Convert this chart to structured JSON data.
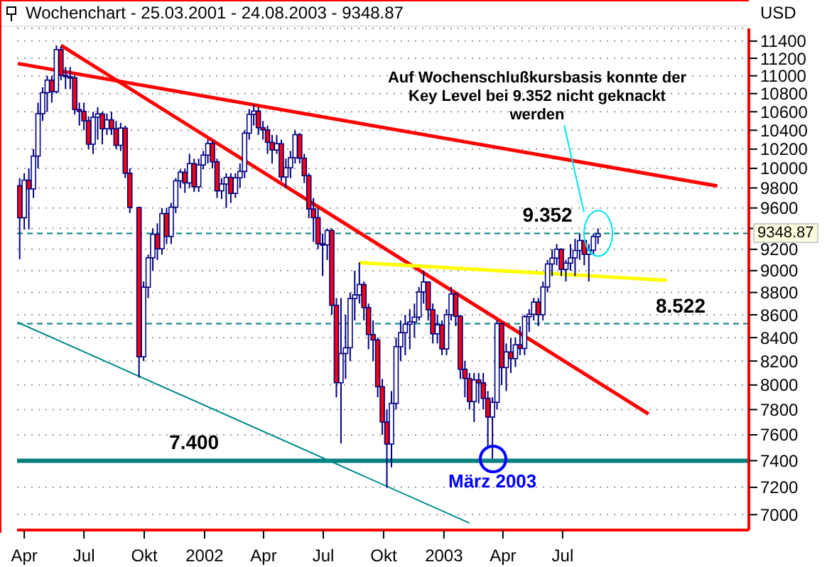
{
  "chart_data": {
    "type": "candlestick",
    "title": "Wochenchart - 25.03.2001 - 24.08.2003 - 9348.87",
    "log": true,
    "grid": "y",
    "xlim": [
      "2001-03-21",
      "2004-04-10"
    ],
    "xticks": [
      {
        "value": "2001-04-01",
        "label": "Apr"
      },
      {
        "value": "2001-07-01",
        "label": "Jul"
      },
      {
        "value": "2001-10-01",
        "label": "Okt"
      },
      {
        "value": "2002-01-01",
        "label": "2002"
      },
      {
        "value": "2002-04-01",
        "label": "Apr"
      },
      {
        "value": "2002-07-01",
        "label": "Jul"
      },
      {
        "value": "2002-10-01",
        "label": "Okt"
      },
      {
        "value": "2003-01-01",
        "label": "2003"
      },
      {
        "value": "2003-04-01",
        "label": "Apr"
      },
      {
        "value": "2003-07-01",
        "label": "Jul"
      }
    ],
    "ylim": [
      6890,
      11550
    ],
    "yticks": [
      7000,
      7200,
      7400,
      7600,
      7800,
      8000,
      8200,
      8400,
      8600,
      8800,
      9000,
      9200,
      {
        "value": 9400,
        "label": null
      },
      9600,
      9800,
      10000,
      10200,
      10400,
      10600,
      10800,
      11000,
      11200,
      11400
    ],
    "series": [
      {
        "type": "candlestick",
        "color": "#000080",
        "x": [
          "2001-03-25",
          "2001-04-01",
          "2001-04-08",
          "2001-04-15",
          "2001-04-22",
          "2001-04-29",
          "2001-05-06",
          "2001-05-13",
          "2001-05-20",
          "2001-05-27",
          "2001-06-03",
          "2001-06-10",
          "2001-06-17",
          "2001-06-24",
          "2001-07-01",
          "2001-07-08",
          "2001-07-15",
          "2001-07-22",
          "2001-07-29",
          "2001-08-05",
          "2001-08-12",
          "2001-08-19",
          "2001-08-26",
          "2001-09-02",
          "2001-09-09",
          "2001-09-23",
          "2001-09-30",
          "2001-10-07",
          "2001-10-14",
          "2001-10-21",
          "2001-10-28",
          "2001-11-04",
          "2001-11-11",
          "2001-11-18",
          "2001-11-25",
          "2001-12-02",
          "2001-12-09",
          "2001-12-16",
          "2001-12-23",
          "2001-12-30",
          "2002-01-06",
          "2002-01-13",
          "2002-01-20",
          "2002-01-27",
          "2002-02-03",
          "2002-02-10",
          "2002-02-17",
          "2002-02-24",
          "2002-03-03",
          "2002-03-10",
          "2002-03-17",
          "2002-03-24",
          "2002-03-31",
          "2002-04-07",
          "2002-04-14",
          "2002-04-21",
          "2002-04-28",
          "2002-05-05",
          "2002-05-12",
          "2002-05-19",
          "2002-05-26",
          "2002-06-02",
          "2002-06-09",
          "2002-06-16",
          "2002-06-23",
          "2002-06-30",
          "2002-07-07",
          "2002-07-14",
          "2002-07-21",
          "2002-07-28",
          "2002-08-04",
          "2002-08-11",
          "2002-08-18",
          "2002-08-25",
          "2002-09-01",
          "2002-09-08",
          "2002-09-15",
          "2002-09-22",
          "2002-09-29",
          "2002-10-06",
          "2002-10-13",
          "2002-10-20",
          "2002-10-27",
          "2002-11-03",
          "2002-11-10",
          "2002-11-17",
          "2002-11-24",
          "2002-12-01",
          "2002-12-08",
          "2002-12-15",
          "2002-12-22",
          "2002-12-29",
          "2003-01-05",
          "2003-01-12",
          "2003-01-19",
          "2003-01-26",
          "2003-02-02",
          "2003-02-09",
          "2003-02-16",
          "2003-02-23",
          "2003-03-02",
          "2003-03-09",
          "2003-03-16",
          "2003-03-23",
          "2003-03-30",
          "2003-04-06",
          "2003-04-13",
          "2003-04-20",
          "2003-04-27",
          "2003-05-04",
          "2003-05-11",
          "2003-05-18",
          "2003-05-25",
          "2003-06-01",
          "2003-06-08",
          "2003-06-15",
          "2003-06-22",
          "2003-06-29",
          "2003-07-06",
          "2003-07-13",
          "2003-07-20",
          "2003-07-27",
          "2003-08-03",
          "2003-08-10",
          "2003-08-17",
          "2003-08-24"
        ],
        "ohlc": [
          [
            9823,
            9900,
            9106,
            9504
          ],
          [
            9504,
            9950,
            9390,
            9879
          ],
          [
            9879,
            10000,
            9390,
            9791
          ],
          [
            9791,
            10200,
            9700,
            10127
          ],
          [
            10127,
            10700,
            10000,
            10579
          ],
          [
            10579,
            10870,
            10500,
            10810
          ],
          [
            10810,
            11000,
            10600,
            10951
          ],
          [
            10951,
            11000,
            10700,
            10821
          ],
          [
            10821,
            11350,
            10800,
            11301
          ],
          [
            11301,
            11340,
            10950,
            11005
          ],
          [
            11005,
            11100,
            10850,
            10990
          ],
          [
            10990,
            11100,
            10850,
            10977
          ],
          [
            10977,
            11000,
            10570,
            10624
          ],
          [
            10624,
            10700,
            10450,
            10604
          ],
          [
            10604,
            10700,
            10400,
            10502
          ],
          [
            10502,
            10550,
            10200,
            10252
          ],
          [
            10252,
            10600,
            10150,
            10540
          ],
          [
            10540,
            10650,
            10300,
            10577
          ],
          [
            10577,
            10600,
            10250,
            10416
          ],
          [
            10416,
            10580,
            10350,
            10512
          ],
          [
            10512,
            10600,
            10350,
            10416
          ],
          [
            10416,
            10500,
            10200,
            10240
          ],
          [
            10240,
            10480,
            10180,
            10423
          ],
          [
            10423,
            10450,
            9900,
            9950
          ],
          [
            9950,
            10000,
            9550,
            9605
          ],
          [
            9605,
            9610,
            8062,
            8236
          ],
          [
            8236,
            8900,
            8200,
            8848
          ],
          [
            8848,
            9150,
            8750,
            9120
          ],
          [
            9120,
            9400,
            9000,
            9344
          ],
          [
            9344,
            9450,
            9100,
            9205
          ],
          [
            9205,
            9600,
            9150,
            9545
          ],
          [
            9545,
            9600,
            9250,
            9323
          ],
          [
            9323,
            9650,
            9250,
            9608
          ],
          [
            9608,
            9900,
            9550,
            9872
          ],
          [
            9872,
            9990,
            9800,
            9960
          ],
          [
            9960,
            10000,
            9750,
            9851
          ],
          [
            9851,
            10150,
            9800,
            10049
          ],
          [
            10049,
            10100,
            9760,
            9812
          ],
          [
            9812,
            10100,
            9760,
            10035
          ],
          [
            10035,
            10180,
            9990,
            10137
          ],
          [
            10137,
            10300,
            10050,
            10259
          ],
          [
            10259,
            10290,
            10000,
            10068
          ],
          [
            10068,
            10100,
            9700,
            9771
          ],
          [
            9771,
            9900,
            9690,
            9840
          ],
          [
            9840,
            9950,
            9600,
            9907
          ],
          [
            9907,
            9950,
            9650,
            9745
          ],
          [
            9745,
            9950,
            9700,
            9903
          ],
          [
            9903,
            10050,
            9800,
            9968
          ],
          [
            9968,
            10400,
            9900,
            10369
          ],
          [
            10369,
            10630,
            10300,
            10572
          ],
          [
            10572,
            10680,
            10450,
            10607
          ],
          [
            10607,
            10650,
            10350,
            10427
          ],
          [
            10427,
            10500,
            10300,
            10404
          ],
          [
            10404,
            10450,
            10150,
            10271
          ],
          [
            10271,
            10350,
            10050,
            10191
          ],
          [
            10191,
            10350,
            10150,
            10257
          ],
          [
            10257,
            10300,
            9870,
            9911
          ],
          [
            9911,
            10100,
            9800,
            10006
          ],
          [
            10006,
            10180,
            9900,
            10110
          ],
          [
            10110,
            10400,
            10050,
            10353
          ],
          [
            10353,
            10370,
            10050,
            10105
          ],
          [
            10105,
            10150,
            9850,
            9925
          ],
          [
            9925,
            9950,
            9500,
            9590
          ],
          [
            9590,
            9700,
            9270,
            9504
          ],
          [
            9504,
            9600,
            9200,
            9253
          ],
          [
            9253,
            9350,
            8950,
            9243
          ],
          [
            9243,
            9400,
            9100,
            9380
          ],
          [
            9380,
            9400,
            8600,
            8685
          ],
          [
            8685,
            8750,
            7900,
            8019
          ],
          [
            8019,
            8750,
            7532,
            8264
          ],
          [
            8264,
            8600,
            8050,
            8313
          ],
          [
            8313,
            8800,
            8200,
            8745
          ],
          [
            8745,
            9000,
            8550,
            8778
          ],
          [
            8778,
            9077,
            8700,
            8873
          ],
          [
            8873,
            8900,
            8550,
            8664
          ],
          [
            8664,
            8700,
            8300,
            8427
          ],
          [
            8427,
            8550,
            8200,
            8380
          ],
          [
            8380,
            8400,
            7900,
            7986
          ],
          [
            7986,
            8050,
            7600,
            7701
          ],
          [
            7701,
            7800,
            7197,
            7528
          ],
          [
            7528,
            7950,
            7350,
            7850
          ],
          [
            7850,
            8400,
            7800,
            8322
          ],
          [
            8322,
            8550,
            8200,
            8443
          ],
          [
            8443,
            8600,
            8250,
            8517
          ],
          [
            8517,
            8650,
            8300,
            8537
          ],
          [
            8537,
            8700,
            8400,
            8579
          ],
          [
            8579,
            8850,
            8550,
            8805
          ],
          [
            8805,
            9000,
            8700,
            8896
          ],
          [
            8896,
            8900,
            8550,
            8645
          ],
          [
            8645,
            8700,
            8350,
            8433
          ],
          [
            8433,
            8600,
            8350,
            8511
          ],
          [
            8511,
            8550,
            8250,
            8303
          ],
          [
            8303,
            8650,
            8250,
            8601
          ],
          [
            8601,
            8850,
            8550,
            8785
          ],
          [
            8785,
            8800,
            8500,
            8587
          ],
          [
            8587,
            8600,
            8050,
            8131
          ],
          [
            8131,
            8200,
            7900,
            8054
          ],
          [
            8054,
            8100,
            7800,
            7865
          ],
          [
            7865,
            8100,
            7700,
            8042
          ],
          [
            8042,
            8100,
            7850,
            8018
          ],
          [
            8018,
            8100,
            7800,
            7891
          ],
          [
            7891,
            7950,
            7500,
            7740
          ],
          [
            7740,
            7900,
            7416,
            7859
          ],
          [
            7859,
            8550,
            7800,
            8522
          ],
          [
            8522,
            8530,
            8000,
            8145
          ],
          [
            8145,
            8350,
            7950,
            8277
          ],
          [
            8277,
            8400,
            8100,
            8221
          ],
          [
            8221,
            8400,
            8150,
            8338
          ],
          [
            8338,
            8500,
            8250,
            8307
          ],
          [
            8307,
            8600,
            8250,
            8583
          ],
          [
            8583,
            8650,
            8450,
            8604
          ],
          [
            8604,
            8750,
            8550,
            8713
          ],
          [
            8713,
            8750,
            8500,
            8601
          ],
          [
            8601,
            8900,
            8550,
            8850
          ],
          [
            8850,
            9100,
            8800,
            9062
          ],
          [
            9062,
            9200,
            8950,
            9117
          ],
          [
            9117,
            9250,
            9050,
            9201
          ],
          [
            9201,
            9210,
            8950,
            9011
          ],
          [
            9011,
            9100,
            8900,
            9070
          ],
          [
            9070,
            9250,
            9000,
            9119
          ],
          [
            9119,
            9300,
            8950,
            9189
          ],
          [
            9189,
            9350,
            9100,
            9284
          ],
          [
            9284,
            9290,
            9050,
            9153
          ],
          [
            9153,
            9250,
            8900,
            9191
          ],
          [
            9191,
            9350,
            9150,
            9321
          ],
          [
            9321,
            9400,
            9250,
            9349
          ]
        ]
      },
      {
        "type": "line",
        "color": "#ff0000",
        "x": [
          "2001-03-22",
          "2004-02-22"
        ],
        "values": [
          11140,
          9820
        ]
      },
      {
        "type": "line",
        "color": "#ff0000",
        "x": [
          "2001-05-27",
          "2003-11-09"
        ],
        "values": [
          11350,
          7765
        ]
      },
      {
        "type": "line",
        "color": "#ffff00",
        "x": [
          "2002-08-25",
          "2003-12-07"
        ],
        "values": [
          9075,
          8911
        ]
      },
      {
        "type": "line",
        "color": "#008b8b",
        "x": [
          "2001-03-22",
          "2003-02-09"
        ],
        "values": [
          8533,
          6940
        ]
      }
    ],
    "ref_lines": [
      {
        "axis": "y",
        "value": 7400,
        "color": "#008080",
        "line_style": "solid"
      },
      {
        "axis": "y",
        "value": 8522,
        "color": "#008080",
        "line_style": "dashed"
      },
      {
        "axis": "y",
        "value": 9352,
        "color": "#008080",
        "line_style": "dashed"
      }
    ],
    "annotations": [
      "USD",
      "Auf Wochenschlußkursbasis konnte der Key Level bei 9.352 nicht geknackt werden",
      "9348.87",
      {
        "text": "März 2003",
        "x": "2003-03-16",
        "y": 7416
      },
      {
        "text": "7.400",
        "x": "2001-12-16",
        "y": 7400
      },
      {
        "text": "8.522",
        "x": "2003-12-28",
        "y": 8522
      },
      {
        "text": "9.352",
        "x": "2003-06-08",
        "y": 9352
      }
    ]
  }
}
